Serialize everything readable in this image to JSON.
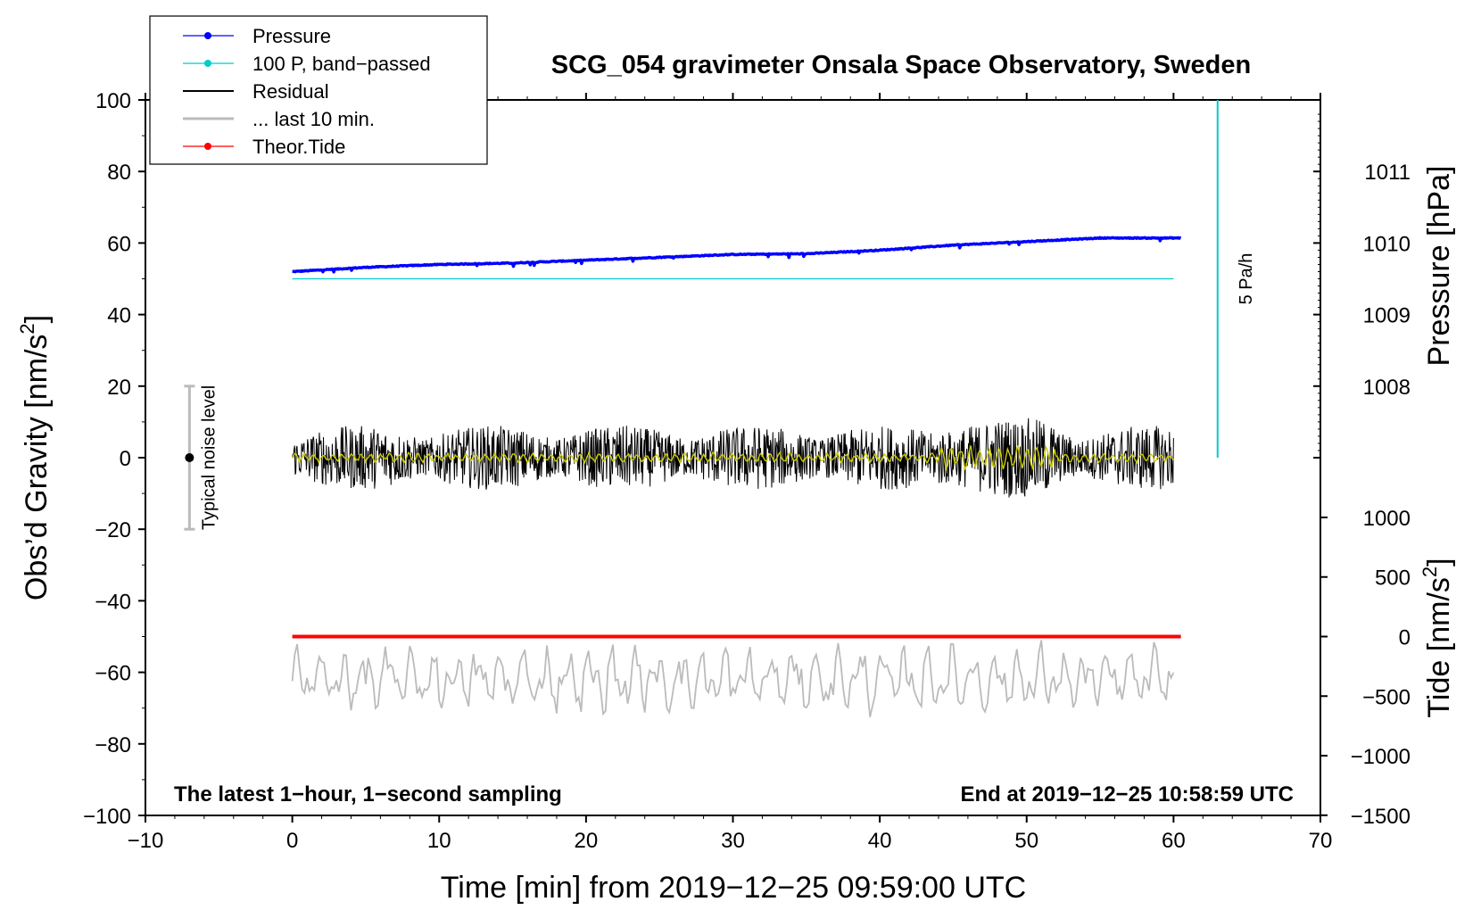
{
  "chart_data": {
    "type": "line",
    "title": "SCG_054 gravimeter Onsala Space Observatory, Sweden",
    "xlabel": "Time [min] from 2019−12−25 09:59:00 UTC",
    "ylabel_left": "Obs’d Gravity [nm/s2]",
    "ylabel_left_main": "Obs’d Gravity [nm/s",
    "ylabel_left_sup": "2",
    "ylabel_left_end": "]",
    "ylabel_right_pressure": "Pressure [hPa]",
    "ylabel_right_tide": "Tide [nm/s2]",
    "ylabel_right_tide_main": "Tide [nm/s",
    "ylabel_right_tide_sup": "2",
    "ylabel_right_tide_end": "]",
    "xlim": [
      -10,
      70
    ],
    "ylim_left": [
      -100,
      100
    ],
    "x_ticks": [
      -10,
      0,
      10,
      20,
      30,
      40,
      50,
      60,
      70
    ],
    "x_tick_labels": [
      "−10",
      "0",
      "10",
      "20",
      "30",
      "40",
      "50",
      "60",
      "70"
    ],
    "y_ticks_left": [
      -100,
      -80,
      -60,
      -40,
      -20,
      0,
      20,
      40,
      60,
      80,
      100
    ],
    "y_tick_labels_left": [
      "−100",
      "−80",
      "−60",
      "−40",
      "−20",
      "0",
      "20",
      "40",
      "60",
      "80",
      "100"
    ],
    "pressure_axis": {
      "ticks": [
        1008,
        1009,
        1010,
        1011
      ],
      "tick_labels": [
        "1008",
        "1009",
        "1010",
        "1011"
      ],
      "gravity_at_1008": 20,
      "gravity_per_hPa": 20
    },
    "tide_axis": {
      "ticks": [
        -1500,
        -1000,
        -500,
        0,
        500,
        1000
      ],
      "tick_labels": [
        "−1500",
        "−1000",
        "−500",
        "0",
        "500",
        "1000"
      ],
      "gravity_at_0": -50,
      "gravity_per_1000": 33.3
    },
    "series": [
      {
        "name": "Pressure",
        "color": "#0000ff",
        "axis": "pressure",
        "x": [
          0,
          5,
          10,
          15,
          20,
          25,
          30,
          35,
          40,
          45,
          50,
          55,
          60.5
        ],
        "values": [
          1009.6,
          1009.66,
          1009.7,
          1009.72,
          1009.76,
          1009.8,
          1009.84,
          1009.85,
          1009.9,
          1009.97,
          1010.02,
          1010.07,
          1010.07
        ]
      },
      {
        "name": "100 P, band−passed",
        "color": "#00cccc",
        "axis": "gravity",
        "x": [
          0,
          60
        ],
        "values": [
          50,
          50
        ]
      },
      {
        "name": "Residual",
        "color": "#000000",
        "axis": "gravity",
        "x_range": [
          0,
          60
        ],
        "values_range": [
          -18,
          14
        ]
      },
      {
        "name": "... last 10 min.",
        "color": "#bbbbbb",
        "axis": "gravity",
        "x_range": [
          0,
          60
        ],
        "values_range": [
          -77,
          -48
        ]
      },
      {
        "name": "Theor.Tide",
        "color": "#ff0000",
        "axis": "tide",
        "x": [
          0,
          60.5
        ],
        "values": [
          0,
          0
        ]
      }
    ],
    "filtered_residual": {
      "color": "#cccc00",
      "values_range": [
        -4,
        4
      ]
    },
    "noise_bar": {
      "label": "Typical noise level",
      "x": -7,
      "center": 0,
      "low": -20,
      "high": 20
    },
    "rate_marker": {
      "label": "5 Pa/h",
      "x": 63,
      "from": 0,
      "to": 100,
      "color": "#00cccc"
    },
    "annotation_left": "The latest 1−hour, 1−second sampling",
    "annotation_right": "End at 2019−12−25 10:58:59 UTC",
    "legend_position": "top-left"
  }
}
